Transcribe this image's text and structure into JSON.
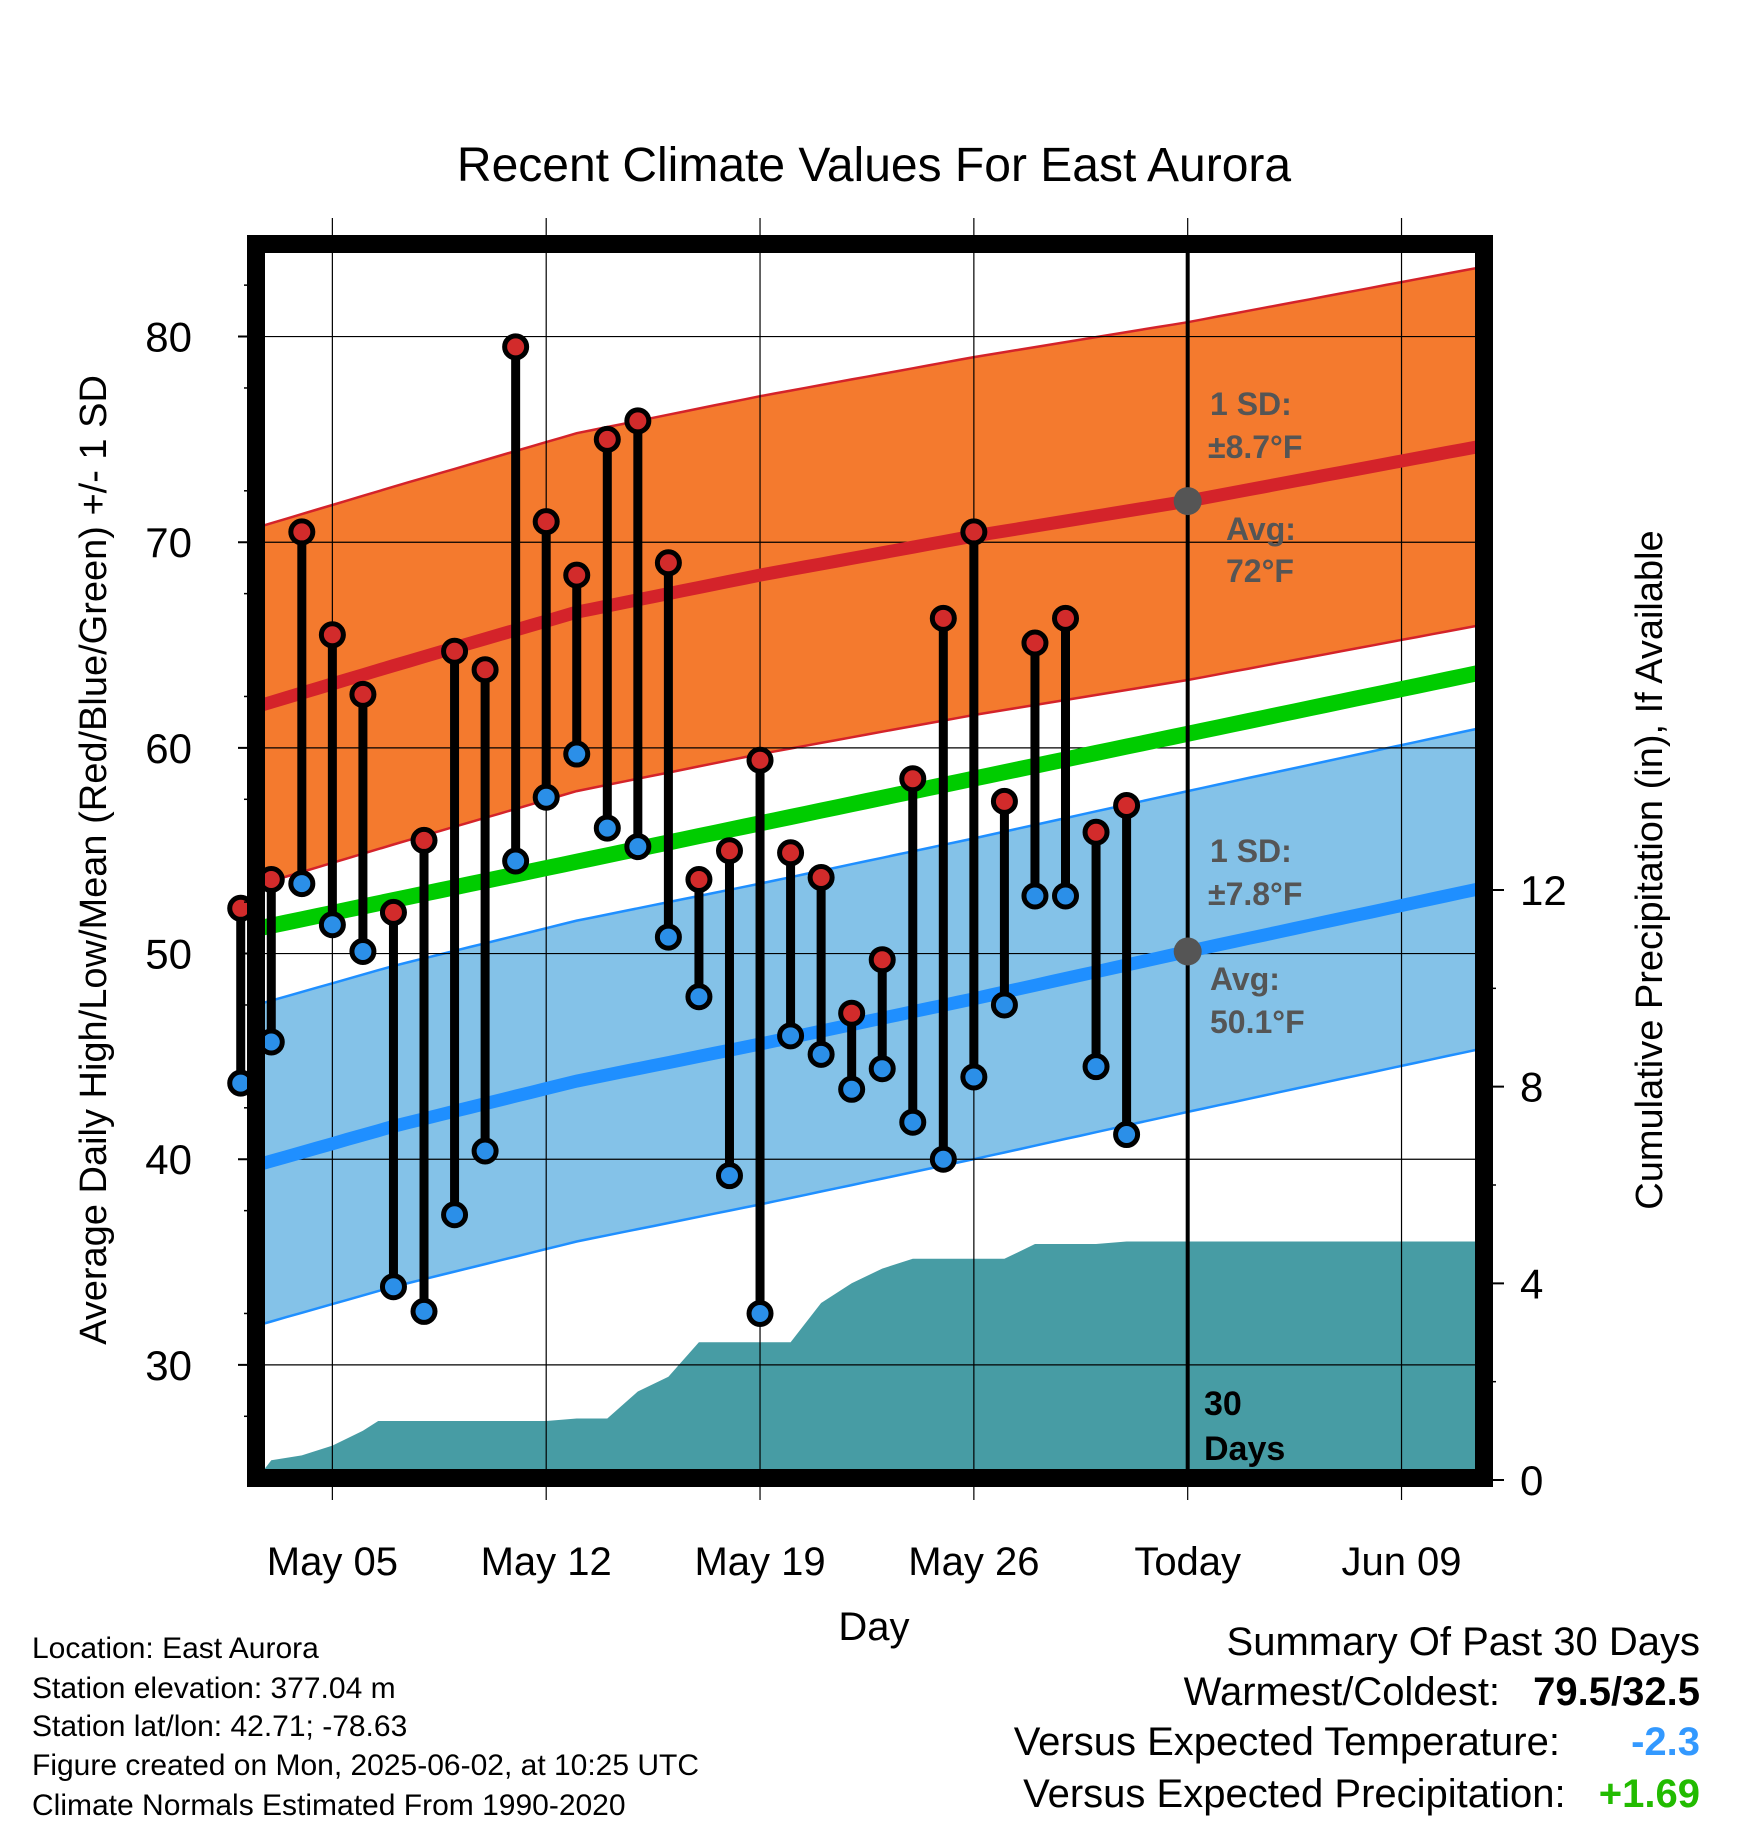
{
  "page": {
    "title": "Recent Climate Values For East Aurora",
    "info": [
      "Location: East Aurora",
      "Station elevation: 377.04 m",
      "Station lat/lon: 42.71; -78.63",
      "Figure created on Mon, 2025-06-02, at 10:25 UTC",
      "Climate Normals Estimated From 1990-2020"
    ],
    "summary": {
      "heading": "Summary Of Past 30 Days",
      "warmest_coldest_label": "Warmest/Coldest:",
      "warmest_coldest_value": "79.5/32.5",
      "temp_label": "Versus Expected Temperature:",
      "temp_value": "-2.3",
      "temp_color": "#3399ff",
      "precip_label": "Versus Expected Precipitation:",
      "precip_value": "+1.69",
      "precip_color": "#22bb00"
    }
  },
  "chart_data": {
    "type": "line",
    "title": "Recent Climate Values For East Aurora",
    "xlabel": "Day",
    "ylabel": "Average Daily High/Low/Mean (Red/Blue/Green) +/- 1 SD",
    "ylabel_right": "Cumulative Precipitation (in), If Available",
    "x_ticks": [
      "May 05",
      "May 12",
      "May 19",
      "May 26",
      "Today",
      "Jun 09"
    ],
    "x_tick_days": [
      4,
      11,
      18,
      25,
      32,
      39
    ],
    "xlim": [
      1.5,
      41.7
    ],
    "ylim": [
      24.5,
      84.5
    ],
    "y_ticks": [
      30,
      40,
      50,
      60,
      70,
      80
    ],
    "y_precip_ticks": [
      0,
      4,
      8,
      12
    ],
    "y_precip_range": [
      0,
      12
    ],
    "today_day": 32,
    "days_label": "30\nDays",
    "colors": {
      "high_band": "#f47a2e",
      "high_line": "#d4232a",
      "low_band": "#84c2e8",
      "low_line": "#1f8fff",
      "mean_line": "#00cc00",
      "precip": "#479ca4",
      "high_dot": "#d22b2b",
      "low_dot": "#2b8fe8",
      "avg_marker": "#555555"
    },
    "normals": {
      "high_avg": [
        [
          1.5,
          62.0
        ],
        [
          6,
          64.0
        ],
        [
          12,
          66.6
        ],
        [
          18,
          68.4
        ],
        [
          25,
          70.3
        ],
        [
          32,
          72.0
        ],
        [
          41.7,
          74.7
        ]
      ],
      "high_sd": 8.7,
      "low_avg": [
        [
          1.5,
          39.7
        ],
        [
          6,
          41.6
        ],
        [
          12,
          43.8
        ],
        [
          18,
          45.6
        ],
        [
          25,
          47.8
        ],
        [
          32,
          50.1
        ],
        [
          41.7,
          53.2
        ]
      ],
      "low_sd": 7.8,
      "mean": [
        [
          1.5,
          51.2
        ],
        [
          41.7,
          63.7
        ]
      ]
    },
    "annotations": {
      "high_sd_text": "1 SD:",
      "high_sd_value": "±8.7°F",
      "high_avg_text": "Avg:",
      "high_avg_value": "72°F",
      "high_avg_point": 72.0,
      "low_sd_text": "1 SD:",
      "low_sd_value": "±7.8°F",
      "low_avg_text": "Avg:",
      "low_avg_value": "50.1°F",
      "low_avg_point": 50.1
    },
    "series": [
      {
        "name": "High",
        "values": [
          52.2,
          53.6,
          70.5,
          65.5,
          62.6,
          52.0,
          55.5,
          64.7,
          63.8,
          79.5,
          71.0,
          68.4,
          75.0,
          75.9,
          69.0,
          53.6,
          55.0,
          59.4,
          54.9,
          53.7,
          47.1,
          49.7,
          58.5,
          66.3,
          70.5,
          57.4,
          65.1,
          66.3,
          55.9,
          57.2
        ]
      },
      {
        "name": "Low",
        "values": [
          43.7,
          45.7,
          53.4,
          51.4,
          50.1,
          33.8,
          32.6,
          37.3,
          40.4,
          54.5,
          57.6,
          59.7,
          56.1,
          55.2,
          50.8,
          47.9,
          39.2,
          32.5,
          46.0,
          45.1,
          43.4,
          44.4,
          41.8,
          40.0,
          44.0,
          47.5,
          52.8,
          52.8,
          44.5,
          41.2
        ]
      }
    ],
    "day_index": [
      1,
      2,
      3,
      4,
      5,
      6,
      7,
      8,
      9,
      10,
      11,
      12,
      13,
      14,
      15,
      16,
      17,
      18,
      19,
      20,
      21,
      22,
      23,
      24,
      25,
      26,
      27,
      28,
      29,
      30
    ],
    "precip_cumulative": [
      [
        1.5,
        0.0
      ],
      [
        2.0,
        0.4
      ],
      [
        3.0,
        0.5
      ],
      [
        4.0,
        0.7
      ],
      [
        5.0,
        1.0
      ],
      [
        5.5,
        1.2
      ],
      [
        6.0,
        1.2
      ],
      [
        7.0,
        1.2
      ],
      [
        10.0,
        1.2
      ],
      [
        11.0,
        1.2
      ],
      [
        12.0,
        1.25
      ],
      [
        13.0,
        1.25
      ],
      [
        14.0,
        1.8
      ],
      [
        15.0,
        2.1
      ],
      [
        16.0,
        2.8
      ],
      [
        17.0,
        2.8
      ],
      [
        18.0,
        2.8
      ],
      [
        19.0,
        2.8
      ],
      [
        20.0,
        3.6
      ],
      [
        21.0,
        4.0
      ],
      [
        22.0,
        4.3
      ],
      [
        23.0,
        4.5
      ],
      [
        24.0,
        4.5
      ],
      [
        25.0,
        4.5
      ],
      [
        26.0,
        4.5
      ],
      [
        27.0,
        4.8
      ],
      [
        28.0,
        4.8
      ],
      [
        29.0,
        4.8
      ],
      [
        30.0,
        4.85
      ],
      [
        32.0,
        4.85
      ],
      [
        41.7,
        4.85
      ]
    ]
  }
}
